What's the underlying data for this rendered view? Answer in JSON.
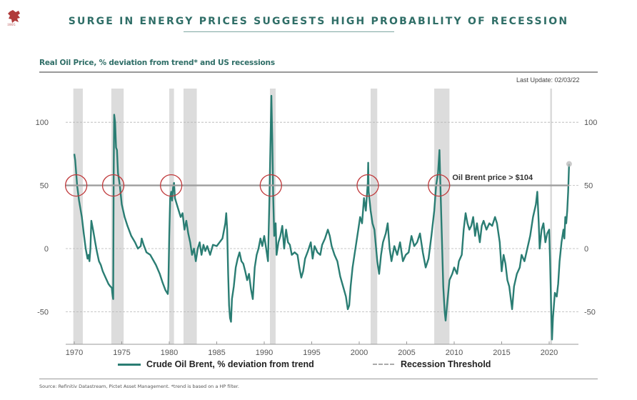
{
  "header": {
    "logo_year": "1805",
    "title": "SURGE IN ENERGY PRICES SUGGESTS HIGH PROBABILITY OF RECESSION"
  },
  "subtitle": "Real Oil Price, % deviation from trend* and US recessions",
  "last_update": "Last Update: 02/03/22",
  "footer": {
    "source": "Source: Refinitiv Datastream, Pictet Asset Management. *trend is based on a HP filter."
  },
  "colors": {
    "series": "#2a7d73",
    "recession_band": "#dcdcdc",
    "threshold": "#9e9e9e",
    "circle": "#c0393b",
    "title": "#2f6e67"
  },
  "chart_data": {
    "type": "line",
    "title": "Real Oil Price, % deviation from trend* and US recessions",
    "xlabel": "",
    "ylabel": "",
    "xlim": [
      1968.8,
      2023.0
    ],
    "ylim": [
      -78,
      125
    ],
    "x_ticks": [
      1970,
      1975,
      1980,
      1985,
      1990,
      1995,
      2000,
      2005,
      2010,
      2015,
      2020
    ],
    "x_tick_labels": [
      "1970",
      "1975",
      "1980",
      "1985",
      "1990",
      "1995",
      "2000",
      "2005",
      "2010",
      "2015",
      "2020"
    ],
    "y_ticks": [
      -50,
      0,
      50,
      100
    ],
    "y_tick_labels_left": [
      "-50",
      "0",
      "50",
      "100"
    ],
    "y_tick_labels_right": [
      "-50",
      "0",
      "50",
      "100"
    ],
    "grid": "horizontal dashed at y ticks",
    "legend": {
      "placement": "bottom",
      "entries": [
        {
          "label": "Crude Oil Brent, % deviation from trend",
          "style": "solid"
        },
        {
          "label": "Recession Threshold",
          "style": "dashed"
        }
      ]
    },
    "threshold": {
      "value": 50,
      "label": "Recession Threshold"
    },
    "annotation": {
      "text": "Oil Brent price > $104",
      "x": 2009.8,
      "y": 55
    },
    "recessions": [
      [
        1969.9,
        1970.9
      ],
      [
        1973.9,
        1975.2
      ],
      [
        1980.0,
        1980.5
      ],
      [
        1981.5,
        1982.9
      ],
      [
        1990.6,
        1991.2
      ],
      [
        2001.2,
        2001.9
      ],
      [
        2007.9,
        2009.5
      ],
      [
        2020.1,
        2020.3
      ]
    ],
    "highlight_circles": [
      1970.2,
      1974.1,
      1980.2,
      1990.7,
      2000.9,
      2008.4
    ],
    "last_point_marker": {
      "x": 2022.1,
      "y": 67
    },
    "series": [
      {
        "name": "Crude Oil Brent, % deviation from trend",
        "points": [
          [
            1970.0,
            75
          ],
          [
            1970.1,
            70
          ],
          [
            1970.3,
            50
          ],
          [
            1970.5,
            38
          ],
          [
            1970.8,
            25
          ],
          [
            1971.0,
            12
          ],
          [
            1971.2,
            0
          ],
          [
            1971.4,
            -8
          ],
          [
            1971.5,
            -5
          ],
          [
            1971.6,
            -10
          ],
          [
            1971.7,
            0
          ],
          [
            1971.8,
            22
          ],
          [
            1972.0,
            14
          ],
          [
            1972.2,
            5
          ],
          [
            1972.4,
            -3
          ],
          [
            1972.6,
            -10
          ],
          [
            1972.8,
            -13
          ],
          [
            1973.0,
            -18
          ],
          [
            1973.3,
            -23
          ],
          [
            1973.6,
            -28
          ],
          [
            1973.8,
            -30
          ],
          [
            1973.95,
            -31
          ],
          [
            1974.0,
            -35
          ],
          [
            1974.05,
            -38
          ],
          [
            1974.1,
            -40
          ],
          [
            1974.15,
            60
          ],
          [
            1974.2,
            106
          ],
          [
            1974.3,
            100
          ],
          [
            1974.4,
            80
          ],
          [
            1974.5,
            78
          ],
          [
            1974.6,
            60
          ],
          [
            1974.8,
            50
          ],
          [
            1975.0,
            35
          ],
          [
            1975.3,
            25
          ],
          [
            1975.6,
            18
          ],
          [
            1976.0,
            10
          ],
          [
            1976.4,
            5
          ],
          [
            1976.7,
            0
          ],
          [
            1977.0,
            2
          ],
          [
            1977.1,
            8
          ],
          [
            1977.3,
            3
          ],
          [
            1977.6,
            -3
          ],
          [
            1978.0,
            -5
          ],
          [
            1978.3,
            -9
          ],
          [
            1978.6,
            -13
          ],
          [
            1979.0,
            -20
          ],
          [
            1979.3,
            -27
          ],
          [
            1979.6,
            -33
          ],
          [
            1979.85,
            -36
          ],
          [
            1979.9,
            -30
          ],
          [
            1980.0,
            10
          ],
          [
            1980.1,
            40
          ],
          [
            1980.2,
            45
          ],
          [
            1980.3,
            38
          ],
          [
            1980.4,
            48
          ],
          [
            1980.5,
            52
          ],
          [
            1980.6,
            40
          ],
          [
            1980.8,
            35
          ],
          [
            1981.0,
            30
          ],
          [
            1981.2,
            25
          ],
          [
            1981.4,
            28
          ],
          [
            1981.6,
            15
          ],
          [
            1981.8,
            22
          ],
          [
            1982.0,
            12
          ],
          [
            1982.2,
            5
          ],
          [
            1982.4,
            -5
          ],
          [
            1982.6,
            0
          ],
          [
            1982.8,
            -10
          ],
          [
            1983.0,
            0
          ],
          [
            1983.2,
            5
          ],
          [
            1983.4,
            -5
          ],
          [
            1983.6,
            3
          ],
          [
            1983.8,
            -2
          ],
          [
            1984.0,
            2
          ],
          [
            1984.3,
            -5
          ],
          [
            1984.6,
            3
          ],
          [
            1985.0,
            2
          ],
          [
            1985.3,
            5
          ],
          [
            1985.6,
            8
          ],
          [
            1985.9,
            20
          ],
          [
            1986.0,
            28
          ],
          [
            1986.1,
            15
          ],
          [
            1986.2,
            -20
          ],
          [
            1986.3,
            -45
          ],
          [
            1986.4,
            -55
          ],
          [
            1986.5,
            -58
          ],
          [
            1986.6,
            -40
          ],
          [
            1986.8,
            -30
          ],
          [
            1987.0,
            -15
          ],
          [
            1987.2,
            -8
          ],
          [
            1987.4,
            -3
          ],
          [
            1987.6,
            -10
          ],
          [
            1987.8,
            -12
          ],
          [
            1988.0,
            -18
          ],
          [
            1988.2,
            -25
          ],
          [
            1988.4,
            -20
          ],
          [
            1988.6,
            -32
          ],
          [
            1988.8,
            -40
          ],
          [
            1989.0,
            -15
          ],
          [
            1989.2,
            -5
          ],
          [
            1989.4,
            0
          ],
          [
            1989.6,
            8
          ],
          [
            1989.8,
            2
          ],
          [
            1990.0,
            10
          ],
          [
            1990.2,
            0
          ],
          [
            1990.4,
            -10
          ],
          [
            1990.55,
            40
          ],
          [
            1990.7,
            100
          ],
          [
            1990.75,
            121
          ],
          [
            1990.85,
            85
          ],
          [
            1990.95,
            40
          ],
          [
            1991.05,
            10
          ],
          [
            1991.2,
            20
          ],
          [
            1991.3,
            -5
          ],
          [
            1991.5,
            5
          ],
          [
            1991.7,
            10
          ],
          [
            1991.9,
            18
          ],
          [
            1992.1,
            0
          ],
          [
            1992.3,
            15
          ],
          [
            1992.5,
            5
          ],
          [
            1992.7,
            3
          ],
          [
            1992.9,
            -5
          ],
          [
            1993.2,
            -3
          ],
          [
            1993.5,
            -5
          ],
          [
            1993.7,
            -15
          ],
          [
            1993.9,
            -23
          ],
          [
            1994.1,
            -18
          ],
          [
            1994.3,
            -8
          ],
          [
            1994.6,
            -2
          ],
          [
            1994.9,
            5
          ],
          [
            1995.1,
            -8
          ],
          [
            1995.3,
            2
          ],
          [
            1995.6,
            -3
          ],
          [
            1995.9,
            -5
          ],
          [
            1996.1,
            3
          ],
          [
            1996.4,
            8
          ],
          [
            1996.7,
            15
          ],
          [
            1996.9,
            10
          ],
          [
            1997.1,
            2
          ],
          [
            1997.4,
            -5
          ],
          [
            1997.7,
            -10
          ],
          [
            1998.0,
            -22
          ],
          [
            1998.3,
            -30
          ],
          [
            1998.6,
            -38
          ],
          [
            1998.8,
            -48
          ],
          [
            1998.95,
            -45
          ],
          [
            1999.1,
            -30
          ],
          [
            1999.3,
            -15
          ],
          [
            1999.6,
            0
          ],
          [
            1999.9,
            15
          ],
          [
            2000.1,
            25
          ],
          [
            2000.3,
            20
          ],
          [
            2000.5,
            40
          ],
          [
            2000.7,
            30
          ],
          [
            2000.9,
            52
          ],
          [
            2000.95,
            68
          ],
          [
            2001.0,
            45
          ],
          [
            2001.2,
            30
          ],
          [
            2001.4,
            20
          ],
          [
            2001.6,
            15
          ],
          [
            2001.9,
            -10
          ],
          [
            2002.1,
            -20
          ],
          [
            2002.3,
            -5
          ],
          [
            2002.5,
            5
          ],
          [
            2002.8,
            12
          ],
          [
            2003.0,
            20
          ],
          [
            2003.2,
            0
          ],
          [
            2003.4,
            -10
          ],
          [
            2003.7,
            2
          ],
          [
            2004.0,
            -5
          ],
          [
            2004.3,
            5
          ],
          [
            2004.6,
            -10
          ],
          [
            2004.9,
            -5
          ],
          [
            2005.2,
            -3
          ],
          [
            2005.5,
            10
          ],
          [
            2005.8,
            2
          ],
          [
            2006.1,
            5
          ],
          [
            2006.4,
            12
          ],
          [
            2006.7,
            -3
          ],
          [
            2007.0,
            -15
          ],
          [
            2007.3,
            -8
          ],
          [
            2007.6,
            10
          ],
          [
            2007.9,
            30
          ],
          [
            2008.1,
            50
          ],
          [
            2008.3,
            60
          ],
          [
            2008.45,
            78
          ],
          [
            2008.55,
            50
          ],
          [
            2008.7,
            10
          ],
          [
            2008.85,
            -30
          ],
          [
            2009.0,
            -50
          ],
          [
            2009.1,
            -57
          ],
          [
            2009.25,
            -45
          ],
          [
            2009.5,
            -25
          ],
          [
            2009.8,
            -20
          ],
          [
            2010.0,
            -15
          ],
          [
            2010.3,
            -20
          ],
          [
            2010.5,
            -10
          ],
          [
            2010.8,
            -5
          ],
          [
            2011.0,
            15
          ],
          [
            2011.2,
            28
          ],
          [
            2011.4,
            20
          ],
          [
            2011.6,
            15
          ],
          [
            2011.8,
            18
          ],
          [
            2012.0,
            25
          ],
          [
            2012.2,
            10
          ],
          [
            2012.4,
            20
          ],
          [
            2012.7,
            5
          ],
          [
            2012.9,
            18
          ],
          [
            2013.1,
            22
          ],
          [
            2013.4,
            15
          ],
          [
            2013.7,
            20
          ],
          [
            2014.0,
            18
          ],
          [
            2014.3,
            25
          ],
          [
            2014.5,
            20
          ],
          [
            2014.8,
            5
          ],
          [
            2015.0,
            -18
          ],
          [
            2015.2,
            -5
          ],
          [
            2015.4,
            -12
          ],
          [
            2015.6,
            -25
          ],
          [
            2015.8,
            -30
          ],
          [
            2016.0,
            -42
          ],
          [
            2016.1,
            -48
          ],
          [
            2016.3,
            -30
          ],
          [
            2016.6,
            -20
          ],
          [
            2016.9,
            -15
          ],
          [
            2017.1,
            -5
          ],
          [
            2017.4,
            -10
          ],
          [
            2017.7,
            0
          ],
          [
            2018.0,
            10
          ],
          [
            2018.3,
            25
          ],
          [
            2018.6,
            35
          ],
          [
            2018.75,
            45
          ],
          [
            2018.9,
            20
          ],
          [
            2019.0,
            0
          ],
          [
            2019.2,
            15
          ],
          [
            2019.4,
            20
          ],
          [
            2019.6,
            5
          ],
          [
            2019.8,
            12
          ],
          [
            2020.0,
            15
          ],
          [
            2020.1,
            -10
          ],
          [
            2020.2,
            -45
          ],
          [
            2020.3,
            -72
          ],
          [
            2020.4,
            -55
          ],
          [
            2020.6,
            -35
          ],
          [
            2020.8,
            -38
          ],
          [
            2020.95,
            -28
          ],
          [
            2021.1,
            -10
          ],
          [
            2021.3,
            5
          ],
          [
            2021.5,
            15
          ],
          [
            2021.6,
            8
          ],
          [
            2021.7,
            25
          ],
          [
            2021.8,
            20
          ],
          [
            2021.9,
            30
          ],
          [
            2022.0,
            45
          ],
          [
            2022.1,
            67
          ]
        ]
      }
    ]
  }
}
